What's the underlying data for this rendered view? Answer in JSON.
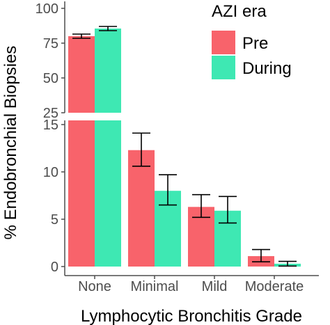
{
  "chart_data": {
    "type": "bar",
    "title": "",
    "xlabel": "Lymphocytic Bronchitis Grade",
    "ylabel": "% Endobronchial Biopsies",
    "categories": [
      "None",
      "Minimal",
      "Mild",
      "Moderate"
    ],
    "axis_break": {
      "upper_panel": {
        "ylim": [
          25,
          100
        ],
        "ticks": [
          "25",
          "50",
          "75",
          "100"
        ]
      },
      "lower_panel": {
        "ylim": [
          0,
          15
        ],
        "ticks": [
          "0",
          "5",
          "10",
          "15"
        ]
      }
    },
    "legend": {
      "title": "AZI era",
      "placement": "top-right"
    },
    "series": [
      {
        "name": "Pre",
        "color": "#F8636B",
        "values": [
          80,
          12.3,
          6.3,
          1.1
        ],
        "error_low": [
          78.5,
          10.6,
          5.2,
          0.5
        ],
        "error_high": [
          81.5,
          14.1,
          7.6,
          1.8
        ]
      },
      {
        "name": "During",
        "color": "#3EE8B3",
        "values": [
          85.5,
          8.0,
          5.9,
          0.3
        ],
        "error_low": [
          84.0,
          6.5,
          4.6,
          0.05
        ],
        "error_high": [
          87.0,
          9.7,
          7.4,
          0.55
        ]
      }
    ],
    "grid": false
  }
}
